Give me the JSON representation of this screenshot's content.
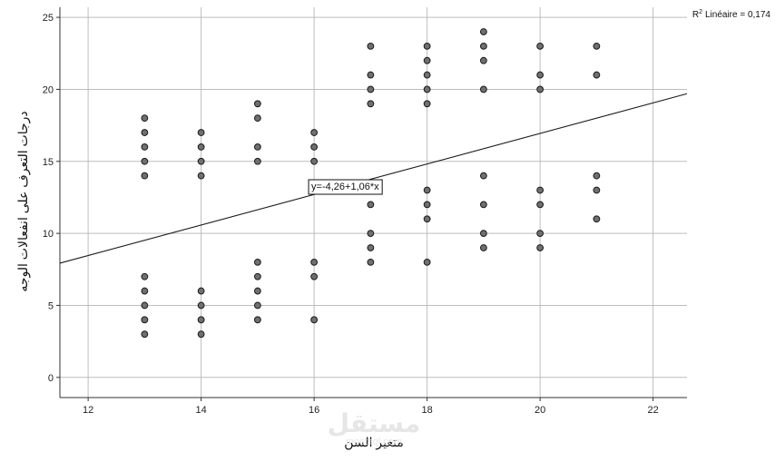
{
  "chart_data": {
    "type": "scatter",
    "title": "",
    "xlabel": "متغير السن",
    "ylabel": "درجات التعرف على انفعالات الوجه",
    "xlim": [
      11.5,
      22.6
    ],
    "ylim": [
      -1.4,
      25.7
    ],
    "xticks": [
      12,
      14,
      16,
      18,
      20,
      22
    ],
    "yticks": [
      0,
      5,
      10,
      15,
      20,
      25
    ],
    "grid": true,
    "points": [
      {
        "x": 13,
        "y": 3
      },
      {
        "x": 13,
        "y": 4
      },
      {
        "x": 13,
        "y": 5
      },
      {
        "x": 13,
        "y": 6
      },
      {
        "x": 13,
        "y": 7
      },
      {
        "x": 13,
        "y": 14
      },
      {
        "x": 13,
        "y": 15
      },
      {
        "x": 13,
        "y": 16
      },
      {
        "x": 13,
        "y": 17
      },
      {
        "x": 13,
        "y": 18
      },
      {
        "x": 14,
        "y": 3
      },
      {
        "x": 14,
        "y": 4
      },
      {
        "x": 14,
        "y": 5
      },
      {
        "x": 14,
        "y": 6
      },
      {
        "x": 14,
        "y": 14
      },
      {
        "x": 14,
        "y": 15
      },
      {
        "x": 14,
        "y": 16
      },
      {
        "x": 14,
        "y": 17
      },
      {
        "x": 15,
        "y": 4
      },
      {
        "x": 15,
        "y": 5
      },
      {
        "x": 15,
        "y": 6
      },
      {
        "x": 15,
        "y": 7
      },
      {
        "x": 15,
        "y": 8
      },
      {
        "x": 15,
        "y": 15
      },
      {
        "x": 15,
        "y": 16
      },
      {
        "x": 15,
        "y": 18
      },
      {
        "x": 15,
        "y": 19
      },
      {
        "x": 16,
        "y": 4
      },
      {
        "x": 16,
        "y": 7
      },
      {
        "x": 16,
        "y": 8
      },
      {
        "x": 16,
        "y": 15
      },
      {
        "x": 16,
        "y": 16
      },
      {
        "x": 16,
        "y": 17
      },
      {
        "x": 17,
        "y": 8
      },
      {
        "x": 17,
        "y": 9
      },
      {
        "x": 17,
        "y": 10
      },
      {
        "x": 17,
        "y": 12
      },
      {
        "x": 17,
        "y": 13
      },
      {
        "x": 17,
        "y": 19
      },
      {
        "x": 17,
        "y": 20
      },
      {
        "x": 17,
        "y": 21
      },
      {
        "x": 17,
        "y": 23
      },
      {
        "x": 18,
        "y": 8
      },
      {
        "x": 18,
        "y": 11
      },
      {
        "x": 18,
        "y": 12
      },
      {
        "x": 18,
        "y": 13
      },
      {
        "x": 18,
        "y": 19
      },
      {
        "x": 18,
        "y": 20
      },
      {
        "x": 18,
        "y": 21
      },
      {
        "x": 18,
        "y": 22
      },
      {
        "x": 18,
        "y": 23
      },
      {
        "x": 19,
        "y": 9
      },
      {
        "x": 19,
        "y": 10
      },
      {
        "x": 19,
        "y": 12
      },
      {
        "x": 19,
        "y": 14
      },
      {
        "x": 19,
        "y": 20
      },
      {
        "x": 19,
        "y": 22
      },
      {
        "x": 19,
        "y": 23
      },
      {
        "x": 19,
        "y": 24
      },
      {
        "x": 20,
        "y": 9
      },
      {
        "x": 20,
        "y": 10
      },
      {
        "x": 20,
        "y": 12
      },
      {
        "x": 20,
        "y": 13
      },
      {
        "x": 20,
        "y": 20
      },
      {
        "x": 20,
        "y": 21
      },
      {
        "x": 20,
        "y": 23
      },
      {
        "x": 21,
        "y": 11
      },
      {
        "x": 21,
        "y": 13
      },
      {
        "x": 21,
        "y": 14
      },
      {
        "x": 21,
        "y": 21
      },
      {
        "x": 21,
        "y": 23
      }
    ],
    "fit_line": {
      "intercept": -4.26,
      "slope": 1.06
    },
    "fit_label": "y=-4,26+1,06*x",
    "fit_label_position": "center",
    "r2_label": "Linéaire = 0,174",
    "r2_prefix": "R",
    "r2_superscript": "2",
    "r2_position": "top-right",
    "colors": {
      "point_fill": "#707070",
      "point_stroke": "#1a1a1a",
      "grid": "#bdbdbd",
      "axis": "#333333",
      "line": "#1a1a1a"
    }
  },
  "watermark": {
    "text": "مستقل",
    "subtext": "mostaql.com"
  }
}
